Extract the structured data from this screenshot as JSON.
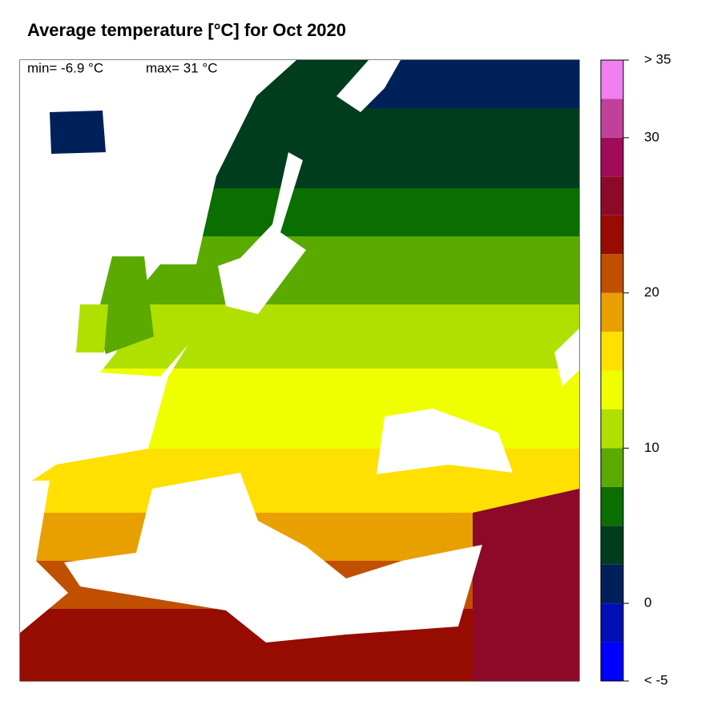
{
  "title": "Average temperature [°C] for Oct 2020",
  "stats": {
    "min": "min= -6.9 °C",
    "max": "max= 31 °C"
  },
  "colorbar": {
    "lim": [
      -5,
      35
    ],
    "bins": [
      -5,
      -2.5,
      0,
      2.5,
      5,
      7.5,
      10,
      12.5,
      15,
      17.5,
      20,
      22.5,
      25,
      27.5,
      30,
      32.5,
      35
    ],
    "colors": [
      "#0000ff",
      "#0010b4",
      "#00205a",
      "#003c1e",
      "#0a6e00",
      "#5aaa00",
      "#b0e000",
      "#f0ff00",
      "#ffe000",
      "#e8a000",
      "#c05000",
      "#960c00",
      "#8c0a28",
      "#a00c5a",
      "#c0409a",
      "#f080f0"
    ],
    "ticks": [
      {
        "value": 35,
        "label": "> 35"
      },
      30,
      20,
      10,
      0,
      {
        "value": -5,
        "label": "< -5"
      }
    ]
  }
}
